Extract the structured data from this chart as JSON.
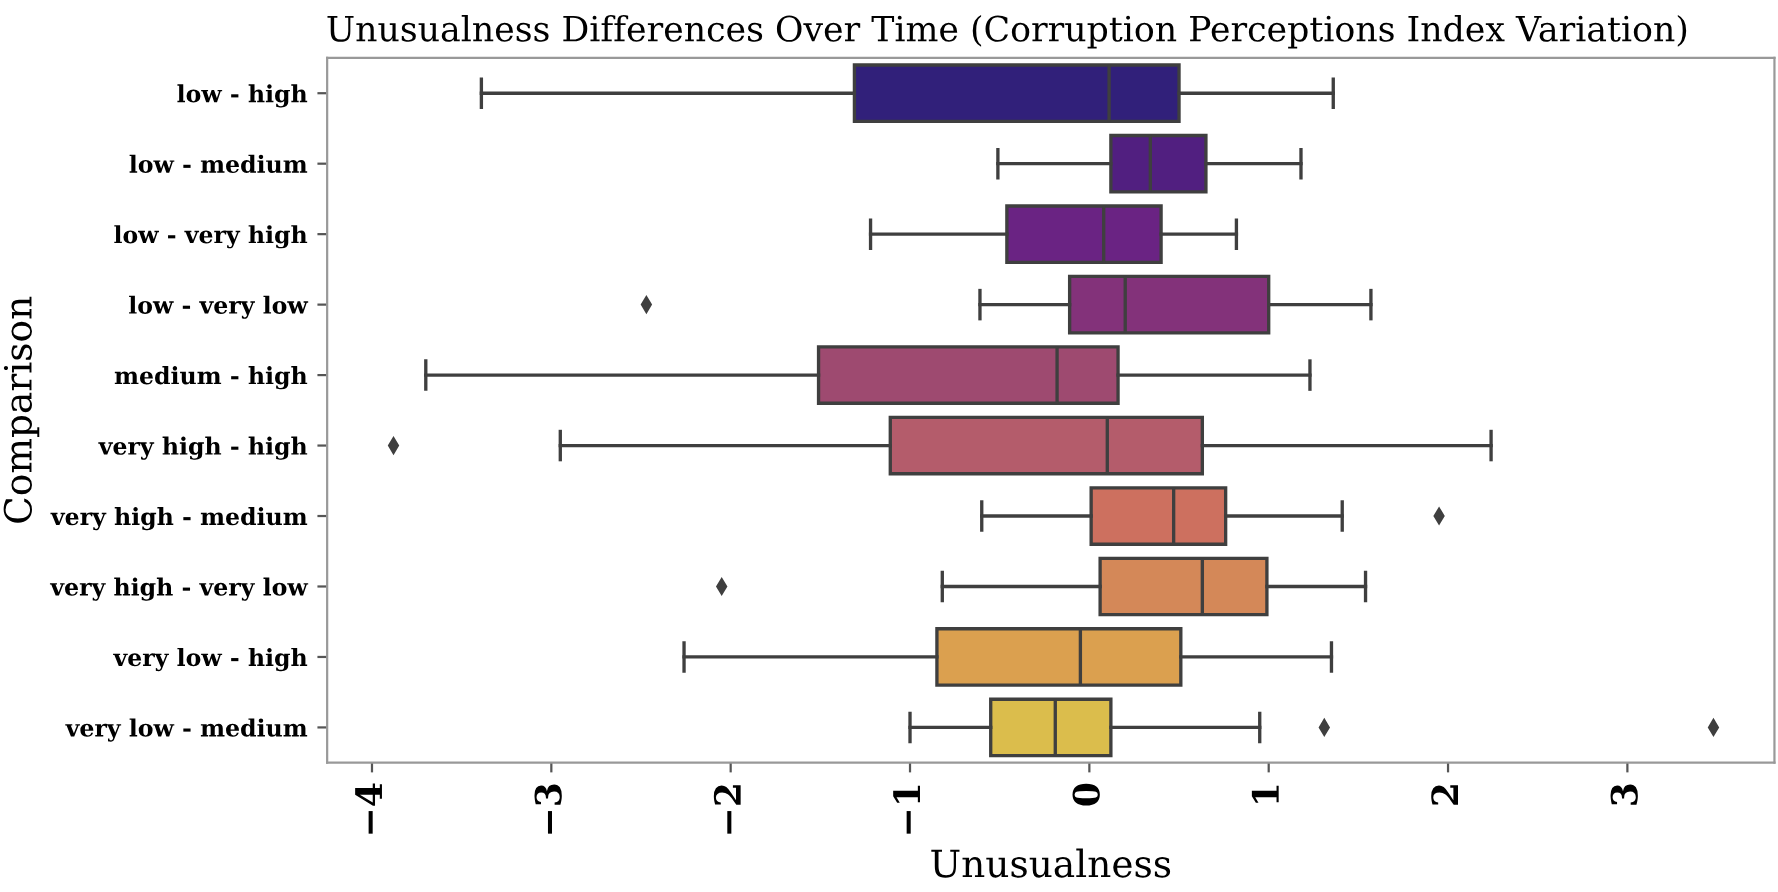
{
  "chart_data": {
    "type": "box",
    "orientation": "horizontal",
    "title": "Unusualness Differences Over Time (Corruption Perceptions Index Variation)",
    "xlabel": "Unusualness",
    "ylabel": "Comparison",
    "categories": [
      "low - high",
      "low - medium",
      "low - very high",
      "low - very low",
      "medium - high",
      "very high - high",
      "very high - medium",
      "very high - very low",
      "very low - high",
      "very low - medium"
    ],
    "boxes": [
      {
        "low": -3.39,
        "q1": -1.31,
        "median": 0.11,
        "q3": 0.5,
        "high": 1.36
      },
      {
        "low": -0.51,
        "q1": 0.12,
        "median": 0.34,
        "q3": 0.65,
        "high": 1.18
      },
      {
        "low": -1.22,
        "q1": -0.46,
        "median": 0.08,
        "q3": 0.4,
        "high": 0.82
      },
      {
        "low": -0.61,
        "q1": -0.11,
        "median": 0.2,
        "q3": 1.0,
        "high": 1.57,
        "outliers": [
          -2.47
        ]
      },
      {
        "low": -3.7,
        "q1": -1.51,
        "median": -0.18,
        "q3": 0.16,
        "high": 1.23
      },
      {
        "low": -2.95,
        "q1": -1.11,
        "median": 0.1,
        "q3": 0.63,
        "high": 2.24,
        "outliers": [
          -3.88
        ]
      },
      {
        "low": -0.6,
        "q1": 0.01,
        "median": 0.47,
        "q3": 0.76,
        "high": 1.41,
        "outliers": [
          1.95
        ]
      },
      {
        "low": -0.82,
        "q1": 0.06,
        "median": 0.63,
        "q3": 0.99,
        "high": 1.54,
        "outliers": [
          -2.05
        ]
      },
      {
        "low": -2.26,
        "q1": -0.85,
        "median": -0.05,
        "q3": 0.51,
        "high": 1.35
      },
      {
        "low": -1.0,
        "q1": -0.55,
        "median": -0.19,
        "q3": 0.12,
        "high": 0.95,
        "outliers": [
          1.31,
          3.48
        ]
      }
    ],
    "colors": [
      "#31207a",
      "#511f80",
      "#6a2383",
      "#83327a",
      "#9e4a70",
      "#b45c6b",
      "#cd705f",
      "#d48858",
      "#dba04f",
      "#dbbd4c"
    ],
    "xlim": [
      -4.25,
      3.82
    ],
    "xticks": [
      -4,
      -3,
      -2,
      -1,
      0,
      1,
      2,
      3
    ],
    "grid": false,
    "legend": false
  }
}
